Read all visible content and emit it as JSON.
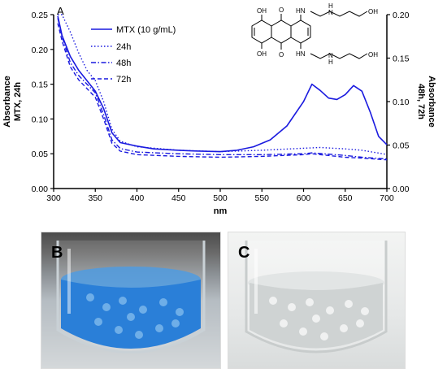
{
  "panel_labels": {
    "a": "A",
    "b": "B",
    "c": "C"
  },
  "chart_data": {
    "type": "line",
    "title": "",
    "xlabel": "nm",
    "ylabel_left": [
      "Absorbance",
      "MTX, 24h"
    ],
    "ylabel_right": [
      "Absorbance",
      "48h, 72h"
    ],
    "xlim": [
      300,
      700
    ],
    "ylim_left": [
      0,
      0.25
    ],
    "ylim_right": [
      0,
      0.2
    ],
    "x_ticks": [
      "300",
      "350",
      "400",
      "450",
      "500",
      "550",
      "600",
      "650",
      "700"
    ],
    "y_ticks_left": [
      "0.00",
      "0.05",
      "0.10",
      "0.15",
      "0.20",
      "0.25"
    ],
    "y_ticks_right": [
      "0.00",
      "0.05",
      "0.10",
      "0.15",
      "0.20"
    ],
    "grid": false,
    "legend_position": "top-left",
    "series": [
      {
        "name": "MTX (10 g/mL)",
        "axis": "left",
        "style": "solid",
        "color": "#1a1adf",
        "x": [
          305,
          310,
          320,
          330,
          340,
          350,
          360,
          370,
          380,
          400,
          420,
          450,
          470,
          500,
          520,
          540,
          560,
          580,
          600,
          610,
          620,
          630,
          640,
          650,
          660,
          670,
          680,
          690,
          700
        ],
        "y": [
          0.248,
          0.22,
          0.19,
          0.17,
          0.155,
          0.14,
          0.115,
          0.08,
          0.066,
          0.061,
          0.057,
          0.055,
          0.054,
          0.053,
          0.055,
          0.06,
          0.07,
          0.09,
          0.125,
          0.15,
          0.141,
          0.13,
          0.128,
          0.135,
          0.148,
          0.14,
          0.11,
          0.075,
          0.063
        ]
      },
      {
        "name": "24h",
        "axis": "left",
        "style": "dotted",
        "color": "#1a1adf",
        "x": [
          305,
          310,
          320,
          330,
          340,
          350,
          360,
          370,
          380,
          400,
          450,
          500,
          550,
          600,
          620,
          650,
          670,
          700
        ],
        "y": [
          0.25,
          0.25,
          0.225,
          0.195,
          0.17,
          0.155,
          0.125,
          0.085,
          0.068,
          0.06,
          0.055,
          0.053,
          0.055,
          0.058,
          0.059,
          0.057,
          0.055,
          0.049
        ]
      },
      {
        "name": "48h",
        "axis": "right",
        "style": "dashdot",
        "color": "#1a1adf",
        "x": [
          305,
          310,
          320,
          330,
          340,
          350,
          360,
          370,
          380,
          400,
          450,
          500,
          550,
          600,
          610,
          650,
          670,
          700
        ],
        "y": [
          0.196,
          0.175,
          0.145,
          0.13,
          0.12,
          0.11,
          0.085,
          0.056,
          0.046,
          0.042,
          0.04,
          0.039,
          0.039,
          0.04,
          0.041,
          0.038,
          0.036,
          0.034
        ]
      },
      {
        "name": "72h",
        "axis": "right",
        "style": "dashed",
        "color": "#1a1adf",
        "x": [
          305,
          310,
          320,
          330,
          340,
          350,
          360,
          370,
          380,
          400,
          450,
          500,
          550,
          600,
          610,
          650,
          670,
          700
        ],
        "y": [
          0.19,
          0.17,
          0.14,
          0.125,
          0.115,
          0.105,
          0.08,
          0.052,
          0.043,
          0.039,
          0.037,
          0.036,
          0.037,
          0.039,
          0.04,
          0.036,
          0.035,
          0.033
        ]
      }
    ],
    "molecule": {
      "labels": [
        "OH",
        "O",
        "HN",
        "H",
        "N",
        "OH",
        "OH",
        "O",
        "HN",
        "H",
        "N",
        "OH"
      ]
    }
  },
  "photos": {
    "b": {
      "liquid_color": "#2a7fd8",
      "glass_tint": "#6fb0e6"
    },
    "c": {
      "liquid_color": "#d8dcdc",
      "glass_tint": "#eef0ef"
    }
  }
}
